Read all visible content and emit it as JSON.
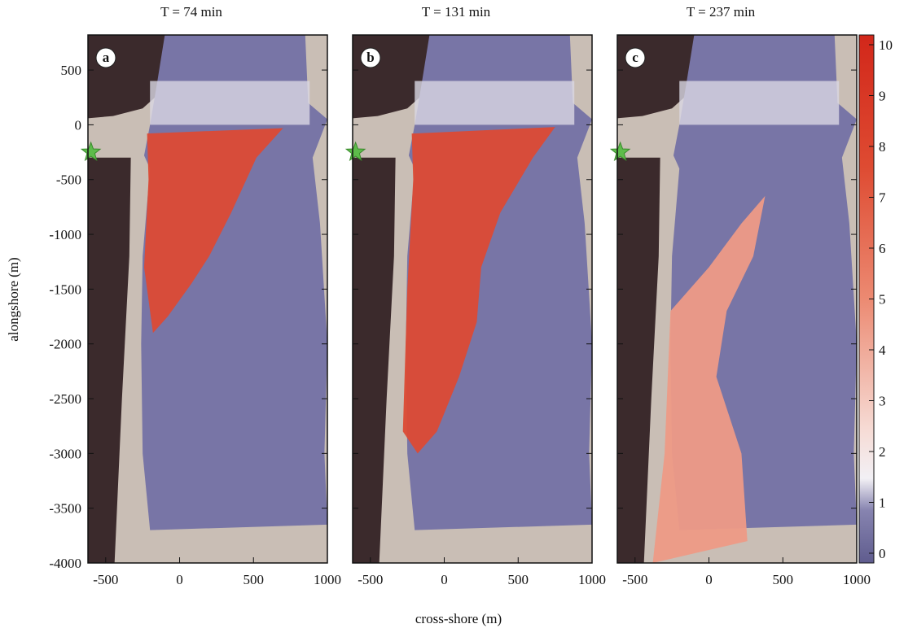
{
  "chart_data": {
    "type": "map",
    "xlabel": "cross-shore (m)",
    "ylabel": "alongshore (m)",
    "ylim": [
      -4000,
      820
    ],
    "yticks": [
      -4000,
      -3500,
      -3000,
      -2500,
      -2000,
      -1500,
      -1000,
      -500,
      0,
      500
    ],
    "panels": [
      {
        "title": "T =  74 min",
        "label": "a",
        "xlim": [
          -620,
          1000
        ],
        "xticks": [
          -500,
          0,
          500,
          1000
        ]
      },
      {
        "title": "T = 131 min",
        "label": "b",
        "xlim": [
          -620,
          1000
        ],
        "xticks": [
          -500,
          0,
          500,
          1000
        ]
      },
      {
        "title": "T = 237 min",
        "label": "c",
        "xlim": [
          -620,
          1000
        ],
        "xticks": [
          -500,
          0,
          500,
          1000
        ]
      }
    ],
    "colorbar": {
      "lim": [
        0,
        10
      ],
      "ticks": [
        0,
        1,
        2,
        3,
        4,
        5,
        6,
        7,
        8,
        9,
        10
      ]
    }
  }
}
